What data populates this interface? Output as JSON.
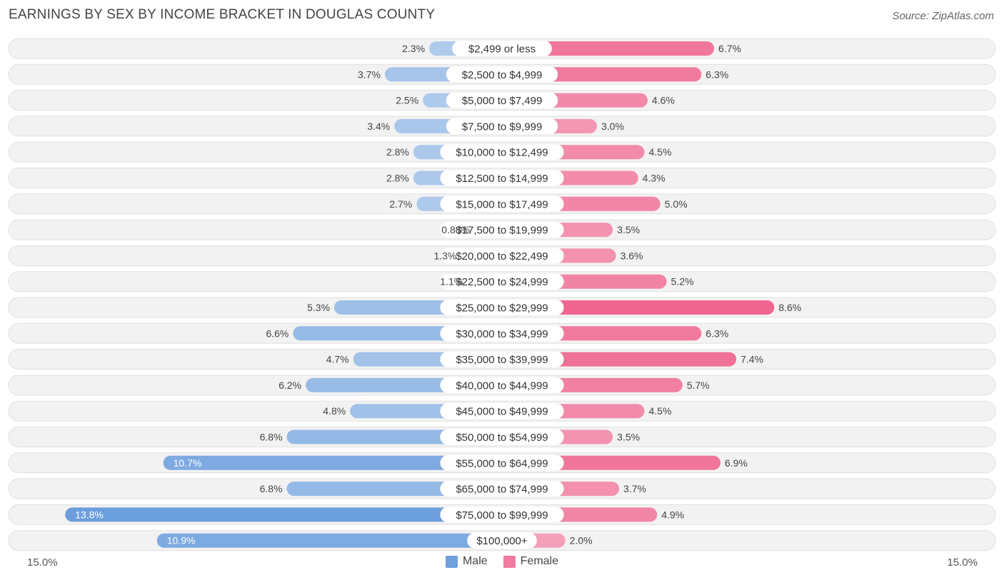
{
  "title": "EARNINGS BY SEX BY INCOME BRACKET IN DOUGLAS COUNTY",
  "source": "Source: ZipAtlas.com",
  "colors": {
    "male": "#6ea0dc",
    "female": "#f07aa0",
    "row_bg": "#f2f2f2",
    "row_border": "#e0e0e0"
  },
  "legend": {
    "male": "Male",
    "female": "Female"
  },
  "axis": {
    "left_label": "15.0%",
    "right_label": "15.0%"
  },
  "chart_data": {
    "type": "bar",
    "title": "EARNINGS BY SEX BY INCOME BRACKET IN DOUGLAS COUNTY",
    "orientation": "horizontal-diverging",
    "xlim": [
      -15.0,
      15.0
    ],
    "categories": [
      "$2,499 or less",
      "$2,500 to $4,999",
      "$5,000 to $7,499",
      "$7,500 to $9,999",
      "$10,000 to $12,499",
      "$12,500 to $14,999",
      "$15,000 to $17,499",
      "$17,500 to $19,999",
      "$20,000 to $22,499",
      "$22,500 to $24,999",
      "$25,000 to $29,999",
      "$30,000 to $34,999",
      "$35,000 to $39,999",
      "$40,000 to $44,999",
      "$45,000 to $49,999",
      "$50,000 to $54,999",
      "$55,000 to $64,999",
      "$65,000 to $74,999",
      "$75,000 to $99,999",
      "$100,000+"
    ],
    "series": [
      {
        "name": "Male",
        "values": [
          2.3,
          3.7,
          2.5,
          3.4,
          2.8,
          2.8,
          2.7,
          0.88,
          1.3,
          1.1,
          5.3,
          6.6,
          4.7,
          6.2,
          4.8,
          6.8,
          10.7,
          6.8,
          13.8,
          10.9
        ],
        "labels": [
          "2.3%",
          "3.7%",
          "2.5%",
          "3.4%",
          "2.8%",
          "2.8%",
          "2.7%",
          "0.88%",
          "1.3%",
          "1.1%",
          "5.3%",
          "6.6%",
          "4.7%",
          "6.2%",
          "4.8%",
          "6.8%",
          "10.7%",
          "6.8%",
          "13.8%",
          "10.9%"
        ]
      },
      {
        "name": "Female",
        "values": [
          6.7,
          6.3,
          4.6,
          3.0,
          4.5,
          4.3,
          5.0,
          3.5,
          3.6,
          5.2,
          8.6,
          6.3,
          7.4,
          5.7,
          4.5,
          3.5,
          6.9,
          3.7,
          4.9,
          2.0
        ],
        "labels": [
          "6.7%",
          "6.3%",
          "4.6%",
          "3.0%",
          "4.5%",
          "4.3%",
          "5.0%",
          "3.5%",
          "3.6%",
          "5.2%",
          "8.6%",
          "6.3%",
          "7.4%",
          "5.7%",
          "4.5%",
          "3.5%",
          "6.9%",
          "3.7%",
          "4.9%",
          "2.0%"
        ]
      }
    ]
  }
}
